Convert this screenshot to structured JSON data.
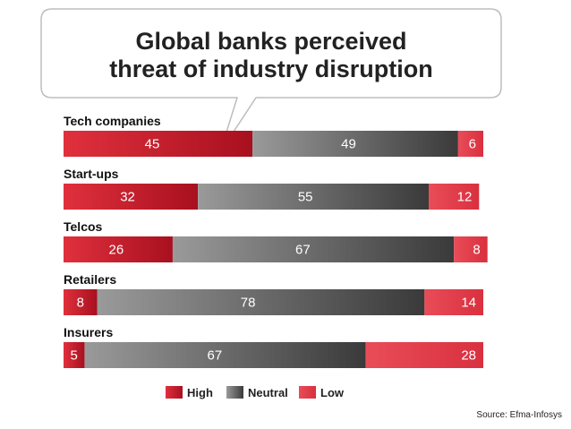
{
  "chart_data": {
    "type": "bar",
    "orientation": "horizontal",
    "stacked": true,
    "title": "Global banks perceived threat of industry disruption",
    "title_lines": [
      "Global banks perceived",
      "threat of industry disruption"
    ],
    "categories": [
      "Tech companies",
      "Start-ups",
      "Telcos",
      "Retailers",
      "Insurers"
    ],
    "series": [
      {
        "name": "High",
        "values": [
          45,
          32,
          26,
          8,
          5
        ]
      },
      {
        "name": "Neutral",
        "values": [
          49,
          55,
          67,
          78,
          67
        ]
      },
      {
        "name": "Low",
        "values": [
          6,
          12,
          8,
          14,
          28
        ]
      }
    ],
    "legend": [
      "High",
      "Neutral",
      "Low"
    ],
    "legend_position": "bottom",
    "xlim": [
      0,
      100
    ]
  },
  "source": "Source: Efma-Infosys",
  "colors": {
    "high": "#c8102e",
    "neutral": "#666666",
    "low": "#e8434f"
  }
}
